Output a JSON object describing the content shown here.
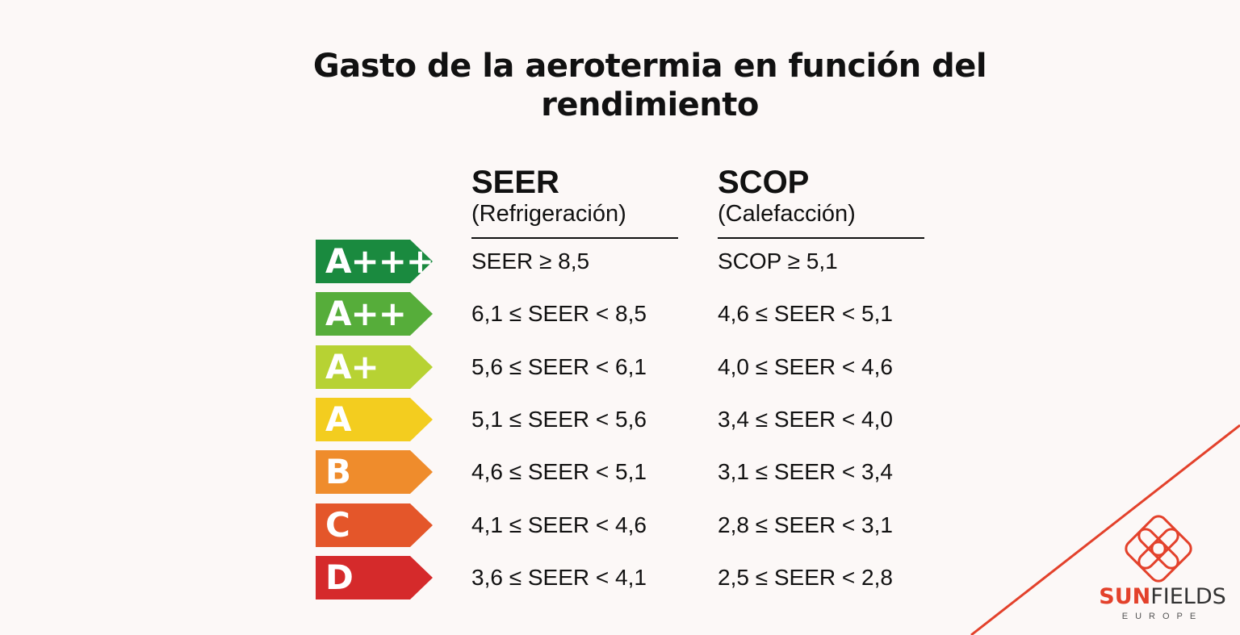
{
  "title": {
    "line1": "Gasto de la aerotermia en función del",
    "line2": "rendimiento"
  },
  "columns": {
    "seer": {
      "heading": "SEER",
      "subheading": "(Refrigeración)"
    },
    "scop": {
      "heading": "SCOP",
      "subheading": "(Calefacción)"
    }
  },
  "rows": [
    {
      "label": "A+++",
      "color": "#1a8a3f",
      "seer": "SEER ≥ 8,5",
      "scop": "SCOP ≥ 5,1"
    },
    {
      "label": "A++",
      "color": "#56ad3a",
      "seer": "6,1 ≤ SEER < 8,5",
      "scop": "4,6 ≤ SEER < 5,1"
    },
    {
      "label": "A+",
      "color": "#b7d233",
      "seer": "5,6 ≤ SEER < 6,1",
      "scop": "4,0 ≤ SEER < 4,6"
    },
    {
      "label": "A",
      "color": "#f3cd1f",
      "seer": "5,1 ≤ SEER < 5,6",
      "scop": "3,4 ≤ SEER < 4,0"
    },
    {
      "label": "B",
      "color": "#ef8c2c",
      "seer": "4,6 ≤ SEER < 5,1",
      "scop": "3,1 ≤ SEER < 3,4"
    },
    {
      "label": "C",
      "color": "#e4562a",
      "seer": "4,1 ≤ SEER < 4,6",
      "scop": "2,8 ≤ SEER < 3,1"
    },
    {
      "label": "D",
      "color": "#d52a2b",
      "seer": "3,6 ≤ SEER < 4,1",
      "scop": "2,5 ≤ SEER < 2,8"
    }
  ],
  "logo": {
    "brand_bold": "SUN",
    "brand_regular": "FIELDS",
    "tagline": "EUROPE",
    "accent_color": "#e3412b",
    "icon": "sunfields-logo-icon"
  }
}
